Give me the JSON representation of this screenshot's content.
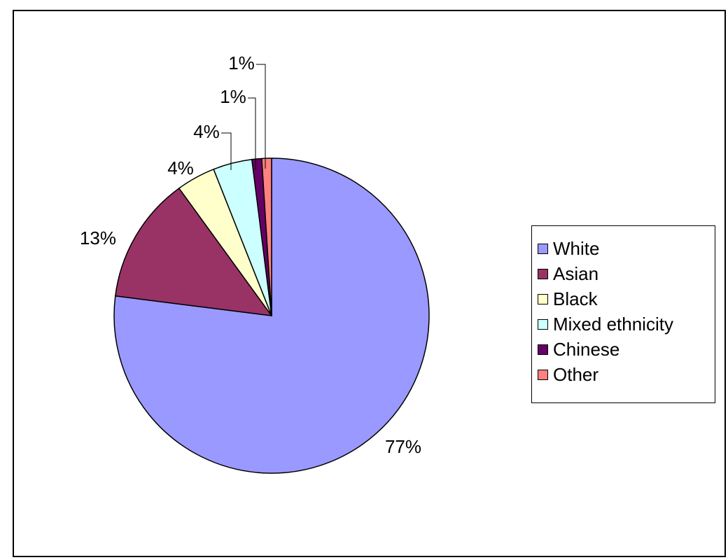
{
  "chart_data": {
    "type": "pie",
    "title": "",
    "legend_position": "right",
    "start_angle_deg": 0,
    "direction": "clockwise",
    "slices": [
      {
        "name": "White",
        "value": 77,
        "label": "77%",
        "color": "#9999FF"
      },
      {
        "name": "Asian",
        "value": 13,
        "label": "13%",
        "color": "#993366"
      },
      {
        "name": "Black",
        "value": 4,
        "label": "4%",
        "color": "#FFFFCC"
      },
      {
        "name": "Mixed ethnicity",
        "value": 4,
        "label": "4%",
        "color": "#CCFFFF"
      },
      {
        "name": "Chinese",
        "value": 1,
        "label": "1%",
        "color": "#660066"
      },
      {
        "name": "Other",
        "value": 1,
        "label": "1%",
        "color": "#FF8080"
      }
    ]
  }
}
